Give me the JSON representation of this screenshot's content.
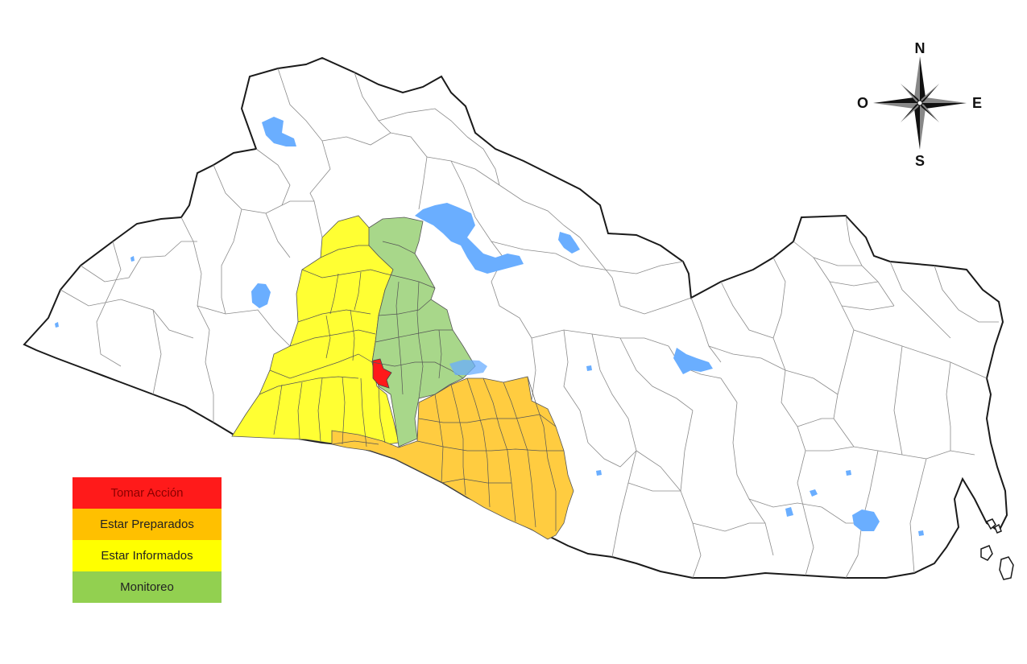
{
  "colors": {
    "take_action": "#ff1a1a",
    "be_prepared": "#ffc000",
    "be_informed": "#ffff00",
    "monitoring": "#92d050",
    "water": "#6aaeff",
    "boundary": "#7a7a7a",
    "outline": "#1a1a1a"
  },
  "legend": {
    "items": [
      {
        "label": "Tomar Acción",
        "color": "#ff1a1a",
        "text_color": "#8b0000"
      },
      {
        "label": "Estar Preparados",
        "color": "#ffc000",
        "text_color": "#222222"
      },
      {
        "label": "Estar Informados",
        "color": "#ffff00",
        "text_color": "#222222"
      },
      {
        "label": "Monitoreo",
        "color": "#92d050",
        "text_color": "#222222"
      }
    ]
  },
  "compass": {
    "north": "N",
    "south": "S",
    "east": "E",
    "west": "O",
    "icon": "compass-rose-icon"
  }
}
